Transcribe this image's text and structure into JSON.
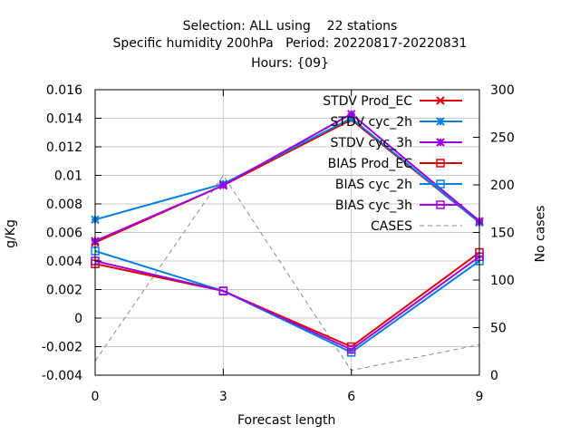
{
  "chart_data": {
    "type": "line",
    "title": [
      "Selection: ALL using    22 stations",
      "Specific humidity 200hPa   Period: 20220817-20220831",
      "Hours: {09}"
    ],
    "xlabel": "Forecast length",
    "ylabel": "g/Kg",
    "y2label": "No cases",
    "x": [
      0,
      3,
      6,
      9
    ],
    "xlim": [
      0,
      9
    ],
    "ylim": [
      -0.004,
      0.016
    ],
    "y2lim": [
      0,
      300
    ],
    "xticks": [
      "0",
      "3",
      "6",
      "9"
    ],
    "yticks": [
      "-0.004",
      "-0.002",
      "0",
      "0.002",
      "0.004",
      "0.006",
      "0.008",
      "0.01",
      "0.012",
      "0.014",
      "0.016"
    ],
    "y2ticks": [
      "0",
      "50",
      "100",
      "150",
      "200",
      "250",
      "300"
    ],
    "grid": true,
    "legend_position": "top-right",
    "series": [
      {
        "name": "STDV Prod_EC",
        "values": [
          0.0053,
          0.0093,
          0.0139,
          0.0067
        ],
        "color": "#e00000",
        "marker": "x",
        "axis": "y1"
      },
      {
        "name": "STDV cyc_2h",
        "values": [
          0.0069,
          0.0094,
          0.014,
          0.0067
        ],
        "color": "#0080e0",
        "marker": "star",
        "axis": "y1"
      },
      {
        "name": "STDV cyc_3h",
        "values": [
          0.0054,
          0.0093,
          0.0143,
          0.0068
        ],
        "color": "#a000e0",
        "marker": "star",
        "axis": "y1"
      },
      {
        "name": "BIAS Prod_EC",
        "values": [
          0.0038,
          0.0019,
          -0.002,
          0.0046
        ],
        "color": "#e00000",
        "marker": "square",
        "axis": "y1"
      },
      {
        "name": "BIAS cyc_2h",
        "values": [
          0.0047,
          0.0019,
          -0.0024,
          0.004
        ],
        "color": "#0080e0",
        "marker": "square",
        "axis": "y1"
      },
      {
        "name": "BIAS cyc_3h",
        "values": [
          0.004,
          0.0019,
          -0.0022,
          0.0043
        ],
        "color": "#a000e0",
        "marker": "square",
        "axis": "y1"
      },
      {
        "name": "CASES",
        "values": [
          15,
          210,
          5,
          32
        ],
        "color": "#888888",
        "marker": "none",
        "dash": true,
        "axis": "y2"
      }
    ]
  }
}
